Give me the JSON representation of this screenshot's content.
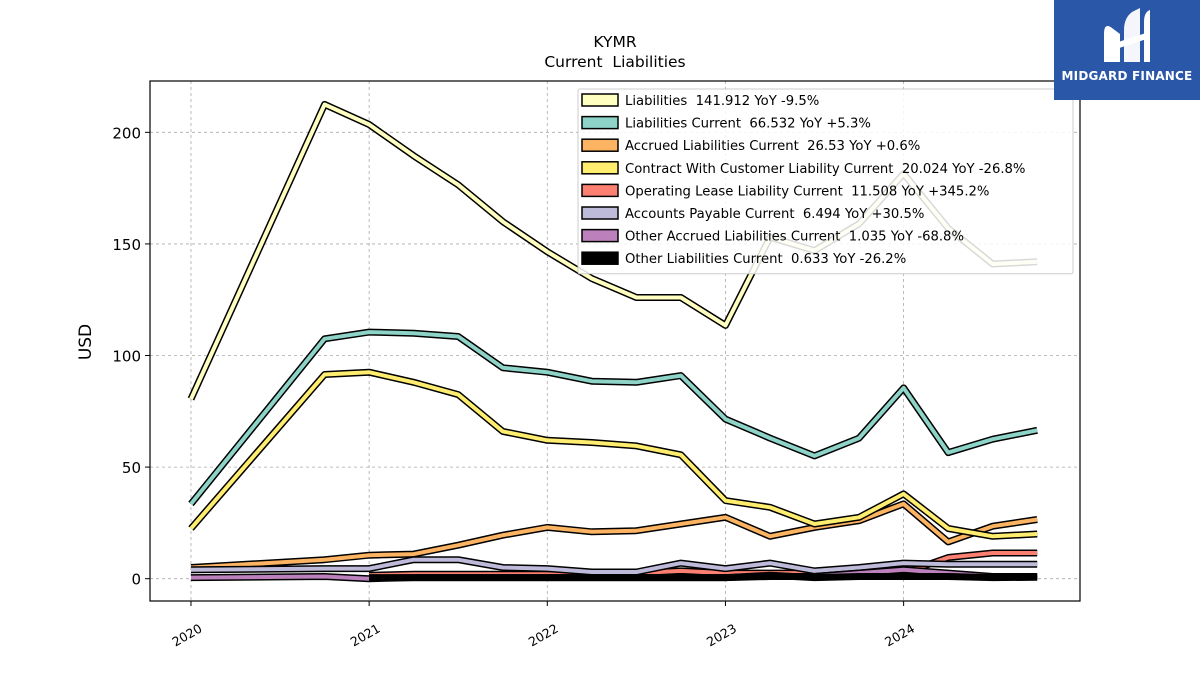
{
  "brand": {
    "name": "MIDGARD FINANCE",
    "logo_icon": "midgard-m-logo-icon",
    "color": "#2b57a8"
  },
  "chart_data": {
    "type": "line",
    "title": "KYMR",
    "subtitle": "Current  Liabilities",
    "ylabel": "USD",
    "xlabel": "",
    "x_ticks": [
      "2020",
      "2021",
      "2022",
      "2023",
      "2024"
    ],
    "x_range": [
      2019.77,
      2024.99
    ],
    "y_range": [
      -10,
      223
    ],
    "y_ticks": [
      0,
      50,
      100,
      150,
      200
    ],
    "grid": true,
    "legend": "top-right",
    "x": [
      2020.0,
      2020.75,
      2021.0,
      2021.25,
      2021.5,
      2021.75,
      2022.0,
      2022.25,
      2022.5,
      2022.75,
      2023.0,
      2023.25,
      2023.5,
      2023.75,
      2024.0,
      2024.25,
      2024.5,
      2024.75
    ],
    "series": [
      {
        "name": "Liabilities",
        "legend_label": "Liabilities  141.912 YoY -9.5%",
        "color": "#ffffbf",
        "values": [
          80.5,
          212.5,
          203.5,
          189.5,
          176.5,
          160.0,
          146.5,
          134.5,
          126.0,
          126.0,
          113.5,
          153.0,
          147.0,
          159.0,
          181.5,
          157.0,
          141.0,
          142.0
        ]
      },
      {
        "name": "Liabilities Current",
        "legend_label": "Liabilities Current  66.532 YoY +5.3%",
        "color": "#8dd3c7",
        "values": [
          33.5,
          107.5,
          110.5,
          110.0,
          108.5,
          94.5,
          92.5,
          88.5,
          88.0,
          91.0,
          71.5,
          63.0,
          55.0,
          63.0,
          85.5,
          56.5,
          62.5,
          66.5
        ]
      },
      {
        "name": "Accrued Liabilities Current",
        "legend_label": "Accrued Liabilities Current  26.53 YoY +0.6%",
        "color": "#fdb462",
        "values": [
          5.0,
          8.5,
          10.5,
          11.0,
          15.0,
          19.5,
          23.0,
          21.0,
          21.5,
          24.5,
          27.5,
          19.0,
          23.0,
          26.0,
          33.5,
          16.5,
          23.5,
          26.5
        ]
      },
      {
        "name": "Contract With Customer Liability Current",
        "legend_label": "Contract With Customer Liability Current  20.024 YoY -26.8%",
        "color": "#ffed6f",
        "values": [
          22.5,
          91.5,
          92.5,
          88.0,
          82.5,
          66.0,
          62.0,
          61.0,
          59.5,
          55.5,
          35.0,
          32.0,
          24.5,
          27.5,
          38.0,
          22.5,
          19.0,
          20.0
        ]
      },
      {
        "name": "Operating Lease Liability Current",
        "legend_label": "Operating Lease Liability Current  11.508 YoY +345.2%",
        "color": "#fb8072",
        "values": [
          null,
          null,
          1.5,
          2.0,
          2.0,
          2.0,
          2.0,
          2.0,
          2.5,
          3.5,
          2.5,
          2.5,
          2.5,
          2.5,
          2.5,
          9.5,
          11.5,
          11.5
        ]
      },
      {
        "name": "Accounts Payable Current",
        "legend_label": "Accounts Payable Current  6.494 YoY +30.5%",
        "color": "#bebada",
        "values": [
          4.0,
          4.5,
          4.5,
          8.5,
          8.5,
          5.0,
          4.5,
          3.0,
          3.0,
          7.0,
          4.5,
          7.0,
          3.5,
          5.0,
          7.0,
          6.5,
          6.5,
          6.5
        ]
      },
      {
        "name": "Other Accrued Liabilities Current",
        "legend_label": "Other Accrued Liabilities Current  1.035 YoY -68.8%",
        "color": "#bc80bd",
        "values": [
          0.5,
          1.0,
          0.0,
          0.5,
          0.5,
          0.5,
          0.5,
          0.5,
          0.5,
          0.5,
          0.5,
          1.0,
          1.0,
          2.5,
          4.0,
          2.5,
          1.0,
          1.0
        ]
      },
      {
        "name": "Other Liabilities Current",
        "legend_label": "Other Liabilities Current  0.633 YoY -26.2%",
        "color": "#000000",
        "values": [
          null,
          null,
          0.5,
          0.5,
          0.5,
          0.5,
          0.5,
          0.5,
          0.5,
          0.5,
          0.5,
          1.5,
          0.5,
          1.0,
          1.0,
          1.0,
          0.5,
          0.6
        ]
      }
    ]
  }
}
